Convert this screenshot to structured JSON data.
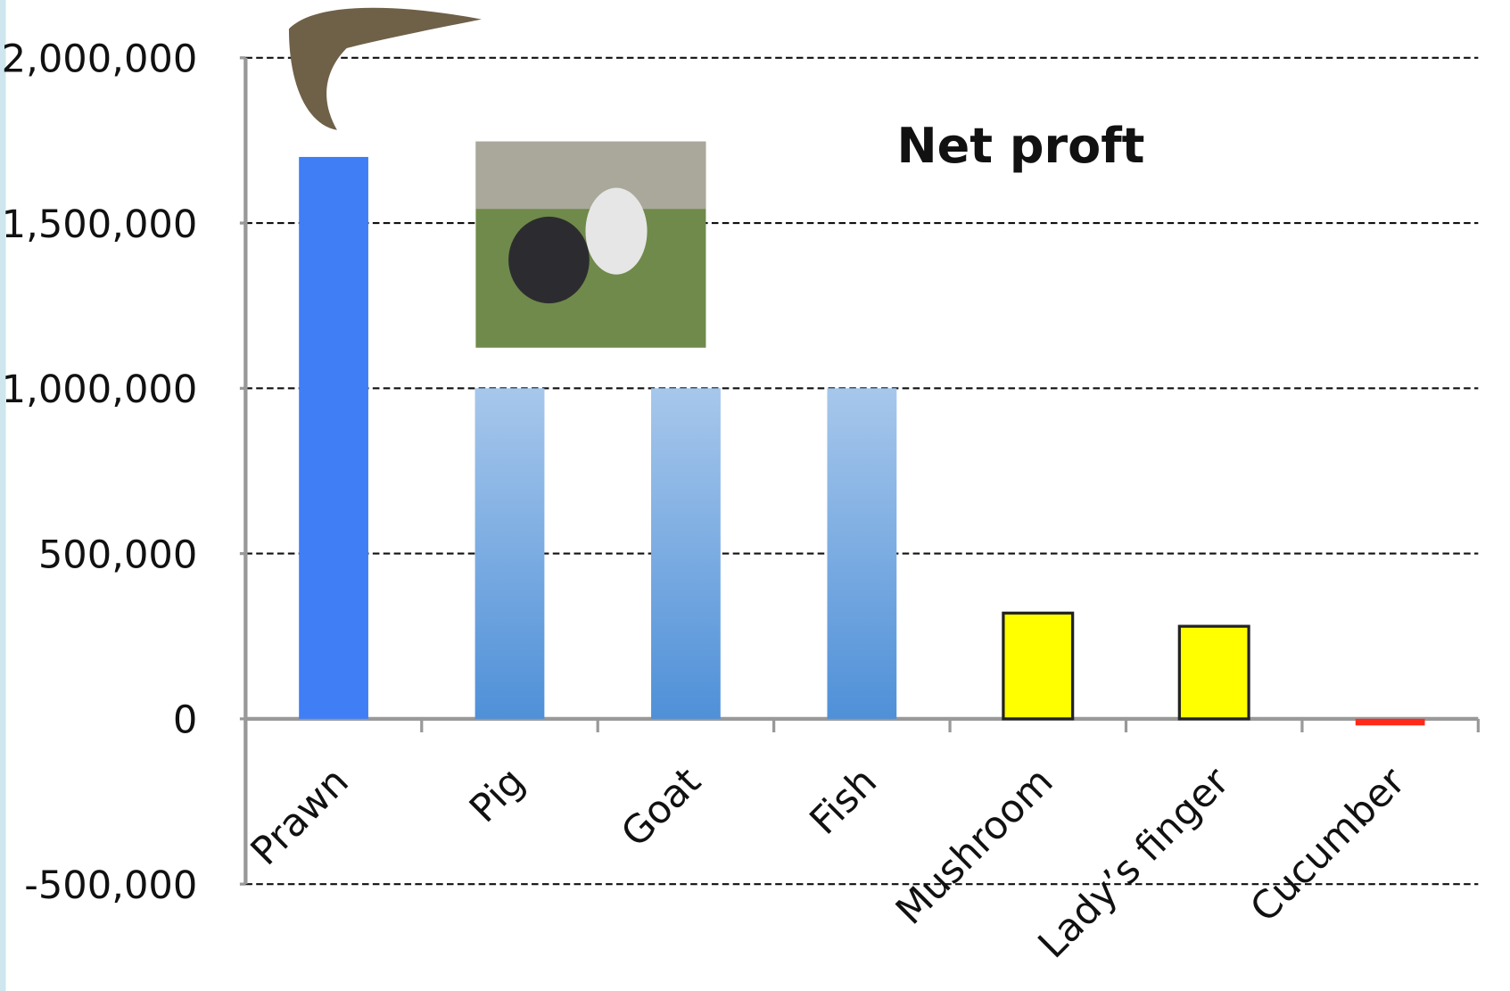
{
  "chart_data": {
    "type": "bar",
    "title": "Net proft",
    "categories": [
      "Prawn",
      "Pig",
      "Goat",
      "Fish",
      "Mushroom",
      "Lady’s finger",
      "Cucumber"
    ],
    "values": [
      1700000,
      1000000,
      1000000,
      1000000,
      320000,
      280000,
      -20000
    ],
    "colors": [
      "#3f7ef5",
      "#4f90d8",
      "#4f90d8",
      "#4f90d8",
      "#ffff00",
      "#ffff00",
      "#ff2a1a"
    ],
    "gradient": [
      false,
      true,
      true,
      true,
      false,
      false,
      false
    ],
    "edgecolors": [
      "none",
      "none",
      "none",
      "none",
      "#222222",
      "#222222",
      "none"
    ],
    "ylim": [
      -500000,
      2000000
    ],
    "yticks": [
      {
        "value": -500000,
        "label": "-500,000"
      },
      0,
      {
        "value": 500000,
        "label": "500,000"
      },
      {
        "value": 1000000,
        "label": "1,000,000"
      },
      {
        "value": 1500000,
        "label": "1,500,000"
      },
      {
        "value": 2000000,
        "label": "2,000,000"
      }
    ],
    "grid": true
  }
}
